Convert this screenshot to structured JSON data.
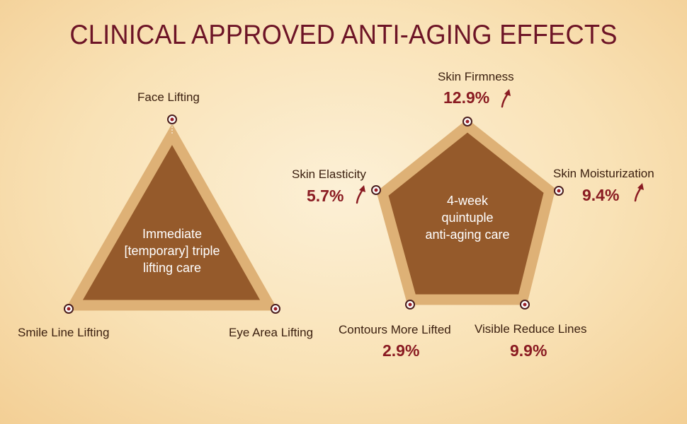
{
  "title": "CLINICAL APPROVED ANTI-AGING EFFECTS",
  "colors": {
    "title": "#6d1426",
    "shape_fill": "#955a2b",
    "shape_border": "#deb176",
    "percent": "#8a1b22"
  },
  "triangle": {
    "center_lines": [
      "Immediate",
      "[temporary] triple",
      "lifting care"
    ],
    "labels": {
      "top": "Face Lifting",
      "bottom_left": "Smile Line Lifting",
      "bottom_right": "Eye Area Lifting"
    }
  },
  "pentagon": {
    "center_lines": [
      "4-week",
      "quintuple",
      "anti-aging care"
    ],
    "metrics": {
      "firmness": {
        "label": "Skin Firmness",
        "value": "12.9%"
      },
      "elasticity": {
        "label": "Skin Elasticity",
        "value": "5.7%"
      },
      "moisturization": {
        "label": "Skin Moisturization",
        "value": "9.4%"
      },
      "contours": {
        "label": "Contours More Lifted",
        "value": "2.9%"
      },
      "lines": {
        "label": "Visible Reduce Lines",
        "value": "9.9%"
      }
    }
  },
  "icons": {
    "increase": "up-arrow-icon",
    "node": "node-dot-icon"
  }
}
